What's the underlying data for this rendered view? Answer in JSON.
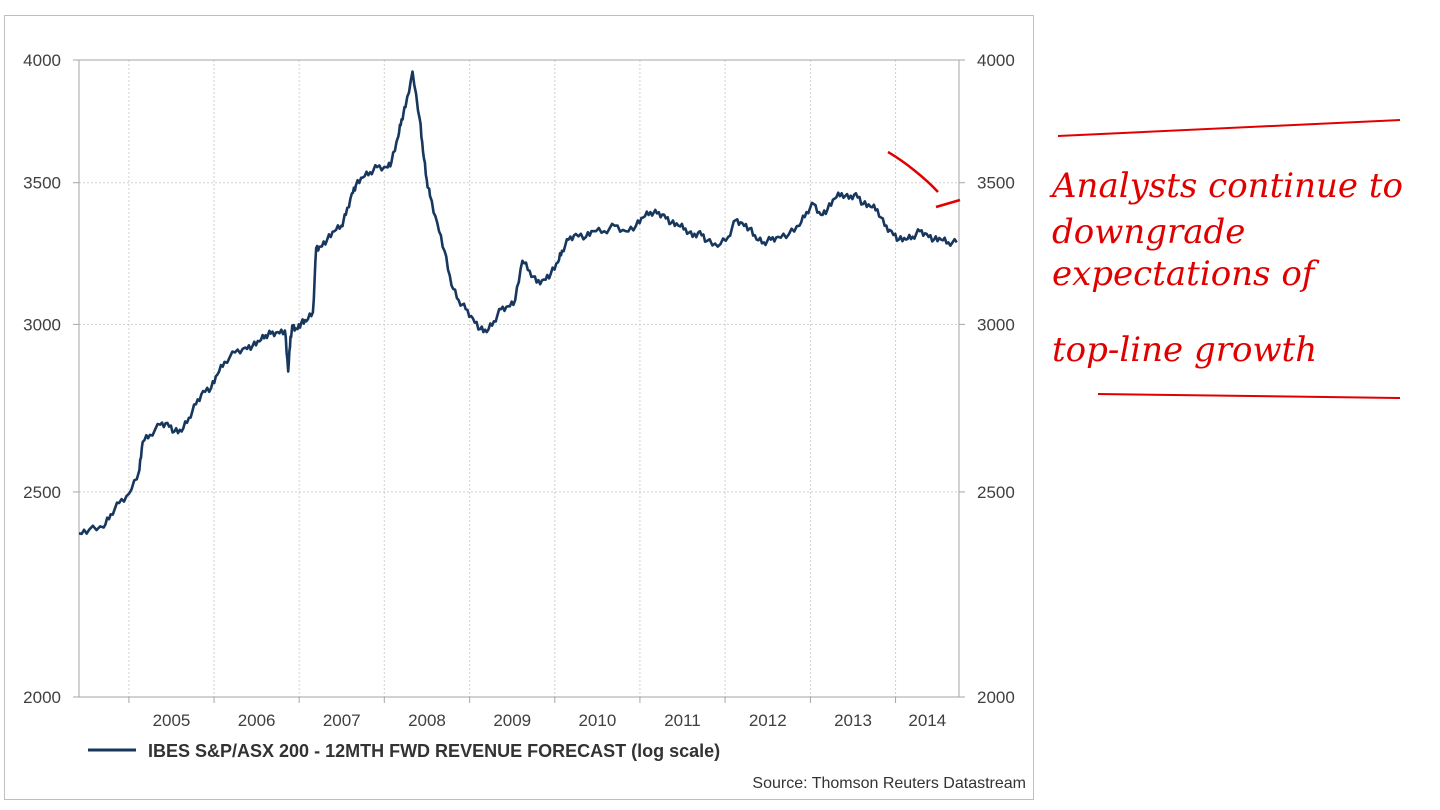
{
  "chart_data": {
    "type": "line",
    "title": "",
    "xlabel": "",
    "ylabel": "",
    "y_scale": "log",
    "ylim": [
      2000,
      4000
    ],
    "yticks": [
      2000,
      2500,
      3000,
      3500,
      4000
    ],
    "ytick_labels": [
      "2000",
      "2500",
      "3000",
      "3500",
      "4000"
    ],
    "y_axes": "left-and-right",
    "xlim": [
      "2004-06-01",
      "2014-09-30"
    ],
    "x_tick_labels": [
      "2005",
      "2006",
      "2007",
      "2008",
      "2009",
      "2010",
      "2011",
      "2012",
      "2013",
      "2014"
    ],
    "grid": true,
    "legend_position": "bottom-left",
    "series": [
      {
        "name": "IBES S&P/ASX 200 - 12MTH FWD REVENUE FORECAST (log scale)",
        "color": "#17375e",
        "x": [
          "2004-06-01",
          "2004-07-15",
          "2004-09-15",
          "2004-10-15",
          "2004-11-20",
          "2005-01-01",
          "2005-02-15",
          "2005-03-01",
          "2005-04-01",
          "2005-05-15",
          "2005-06-15",
          "2005-07-15",
          "2005-08-15",
          "2005-09-15",
          "2005-10-15",
          "2005-11-15",
          "2005-12-20",
          "2006-01-15",
          "2006-02-15",
          "2006-04-01",
          "2006-05-15",
          "2006-06-15",
          "2006-07-15",
          "2006-08-10",
          "2006-09-01",
          "2006-10-01",
          "2006-11-01",
          "2006-11-15",
          "2006-11-25",
          "2006-12-05",
          "2006-12-20",
          "2007-01-10",
          "2007-02-01",
          "2007-03-01",
          "2007-03-15",
          "2007-04-01",
          "2007-05-01",
          "2007-06-01",
          "2007-07-01",
          "2007-07-20",
          "2007-08-15",
          "2007-09-01",
          "2007-10-01",
          "2007-11-01",
          "2007-12-01",
          "2008-01-10",
          "2008-02-01",
          "2008-03-01",
          "2008-03-15",
          "2008-04-01",
          "2008-05-01",
          "2008-06-01",
          "2008-06-15",
          "2008-07-01",
          "2008-07-15",
          "2008-08-15",
          "2008-09-15",
          "2008-10-15",
          "2008-11-15",
          "2008-12-15",
          "2009-01-15",
          "2009-02-15",
          "2009-03-15",
          "2009-04-15",
          "2009-05-15",
          "2009-06-15",
          "2009-07-15",
          "2009-08-15",
          "2009-09-15",
          "2009-10-15",
          "2009-11-15",
          "2009-12-15",
          "2010-01-15",
          "2010-02-01",
          "2010-03-01",
          "2010-04-01",
          "2010-05-15",
          "2010-06-15",
          "2010-08-01",
          "2010-09-15",
          "2010-11-01",
          "2010-12-15",
          "2011-01-15",
          "2011-02-15",
          "2011-03-15",
          "2011-04-15",
          "2011-05-15",
          "2011-06-15",
          "2011-07-15",
          "2011-08-15",
          "2011-09-15",
          "2011-10-15",
          "2011-12-01",
          "2012-01-15",
          "2012-02-15",
          "2012-03-15",
          "2012-04-15",
          "2012-05-15",
          "2012-06-15",
          "2012-07-15",
          "2012-08-15",
          "2012-10-01",
          "2012-11-15",
          "2012-12-15",
          "2013-01-15",
          "2013-02-15",
          "2013-03-15",
          "2013-04-15",
          "2013-05-15",
          "2013-06-15",
          "2013-07-15",
          "2013-08-15",
          "2013-09-15",
          "2013-10-15",
          "2013-11-15",
          "2013-12-15",
          "2014-01-15",
          "2014-02-15",
          "2014-03-15",
          "2014-04-15",
          "2014-05-15",
          "2014-06-15",
          "2014-07-15",
          "2014-08-15",
          "2014-09-20"
        ],
        "values": [
          2390,
          2400,
          2405,
          2440,
          2470,
          2495,
          2560,
          2640,
          2660,
          2690,
          2695,
          2670,
          2670,
          2710,
          2750,
          2790,
          2800,
          2840,
          2880,
          2910,
          2925,
          2930,
          2945,
          2965,
          2970,
          2975,
          2980,
          2850,
          2960,
          2995,
          2985,
          3005,
          3010,
          3040,
          3260,
          3265,
          3290,
          3320,
          3340,
          3380,
          3460,
          3490,
          3520,
          3540,
          3560,
          3560,
          3580,
          3680,
          3750,
          3800,
          3950,
          3750,
          3620,
          3510,
          3450,
          3350,
          3250,
          3130,
          3080,
          3050,
          3020,
          2985,
          2975,
          3010,
          3050,
          3060,
          3080,
          3215,
          3180,
          3140,
          3150,
          3170,
          3210,
          3250,
          3290,
          3310,
          3300,
          3320,
          3320,
          3340,
          3320,
          3340,
          3370,
          3390,
          3385,
          3380,
          3350,
          3340,
          3330,
          3300,
          3320,
          3285,
          3265,
          3300,
          3360,
          3350,
          3330,
          3290,
          3280,
          3290,
          3300,
          3310,
          3340,
          3390,
          3420,
          3380,
          3400,
          3440,
          3460,
          3440,
          3460,
          3420,
          3410,
          3400,
          3340,
          3320,
          3290,
          3290,
          3300,
          3320,
          3310,
          3290,
          3290,
          3280,
          3280
        ]
      }
    ],
    "source": "Source: Thomson Reuters Datastream"
  },
  "annotation": {
    "color": "#e00000",
    "lines": [
      "Analysts continue to",
      "downgrade",
      "expectations of",
      "top-line growth"
    ]
  }
}
